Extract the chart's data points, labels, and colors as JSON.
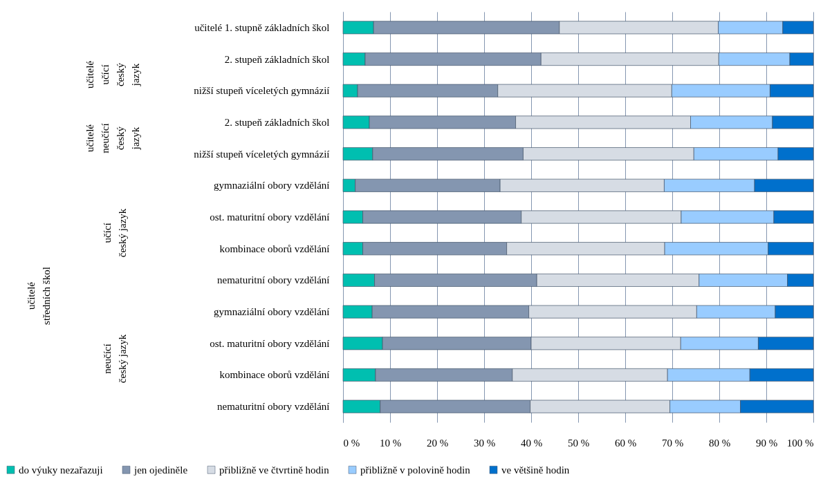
{
  "chart_data": {
    "type": "bar",
    "orientation": "horizontal",
    "stacked": true,
    "categories": [
      "učitelé 1. stupně základních škol",
      "2. stupeň základních škol",
      "nižší stupeň víceletých gymnázií",
      "2. stupeň základních škol",
      "nižší stupeň víceletých gymnázií",
      "gymnaziální obory vzdělání",
      "ost. maturitní obory vzdělání",
      "kombinace oborů vzdělání",
      "nematuritní obory vzdělání",
      "gymnaziální obory vzdělání",
      "ost. maturitní obory vzdělání",
      "kombinace oborů vzdělání",
      "nematuritní obory vzdělání"
    ],
    "series": [
      {
        "name": "do výuky nezařazuji",
        "color": "#00bfb0",
        "values": [
          6.5,
          4.7,
          3.1,
          5.6,
          6.3,
          2.6,
          4.2,
          4.2,
          6.7,
          6.2,
          8.4,
          6.9,
          7.9
        ]
      },
      {
        "name": "jen ojediněle",
        "color": "#8496b0",
        "values": [
          39.5,
          37.4,
          29.8,
          31.1,
          32.0,
          30.8,
          33.7,
          30.6,
          34.5,
          33.3,
          31.6,
          29.1,
          31.9
        ]
      },
      {
        "name": "přibližně ve čtvrtině hodin",
        "color": "#d6dce4",
        "values": [
          33.8,
          37.8,
          37.0,
          37.2,
          36.3,
          34.9,
          34.0,
          33.6,
          34.5,
          35.7,
          31.8,
          33.0,
          29.7
        ]
      },
      {
        "name": "přibližně v polovině hodin",
        "color": "#99ccff",
        "values": [
          13.7,
          15.1,
          20.9,
          17.4,
          17.9,
          19.2,
          19.7,
          22.0,
          18.8,
          16.7,
          16.5,
          17.5,
          15.0
        ]
      },
      {
        "name": "ve většině hodin",
        "color": "#0070cc",
        "values": [
          6.5,
          5.0,
          9.2,
          8.7,
          7.5,
          12.5,
          8.4,
          9.6,
          5.5,
          8.1,
          11.7,
          13.5,
          15.5
        ]
      }
    ],
    "xlim": [
      0,
      100
    ],
    "xticks": [
      {
        "value": 0,
        "label": "0 %"
      },
      {
        "value": 10,
        "label": "10 %"
      },
      {
        "value": 20,
        "label": "20 %"
      },
      {
        "value": 30,
        "label": "30 %"
      },
      {
        "value": 40,
        "label": "40 %"
      },
      {
        "value": 50,
        "label": "50 %"
      },
      {
        "value": 60,
        "label": "60 %"
      },
      {
        "value": 70,
        "label": "70 %"
      },
      {
        "value": 80,
        "label": "80 %"
      },
      {
        "value": 90,
        "label": "90 %"
      },
      {
        "value": 100,
        "label": "100 %"
      }
    ],
    "grid": "x",
    "legend": "bottom",
    "annotations": [
      "učitelé\nstředních škol",
      "učící\nčeský jazyk",
      "neučící\nčeský jazyk",
      "učitelé\nučící\nčeský\njazyk",
      "učitelé\nneučící\nčeský\njazyk"
    ]
  }
}
